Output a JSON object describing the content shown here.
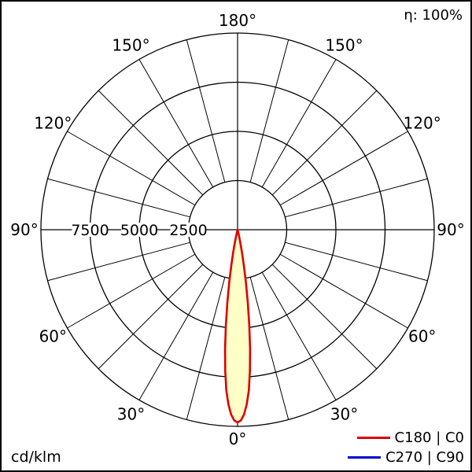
{
  "eta_label": "η: 100%",
  "unit_label": "cd/klm",
  "legend": [
    {
      "label": "C180 | C0",
      "color": "#dd0000"
    },
    {
      "label": "C270 | C90",
      "color": "#0000cc"
    }
  ],
  "chart_data": {
    "type": "polar_intensity_distribution",
    "title": "",
    "unit": "cd/klm",
    "efficiency": "η: 100%",
    "angle_zero_position": "bottom",
    "max_value": 10000,
    "rings": [
      2500,
      5000,
      7500,
      10000
    ],
    "ring_labels": [
      7500,
      5000,
      2500
    ],
    "spoke_step_deg": 15,
    "angle_labels_deg": [
      0,
      30,
      60,
      90,
      120,
      150,
      180
    ],
    "series": [
      {
        "name": "C180 | C0",
        "color": "#dd0000",
        "fill": "#ffffc8",
        "symmetric": true,
        "gamma_deg": [
          0,
          1,
          2,
          3,
          4,
          5,
          6,
          7,
          8,
          9,
          10,
          11,
          12,
          13,
          14,
          15,
          16
        ],
        "values": [
          9800,
          9700,
          9400,
          8900,
          8200,
          7200,
          6100,
          4900,
          3750,
          2700,
          1820,
          1150,
          660,
          340,
          150,
          50,
          0
        ]
      }
    ]
  }
}
